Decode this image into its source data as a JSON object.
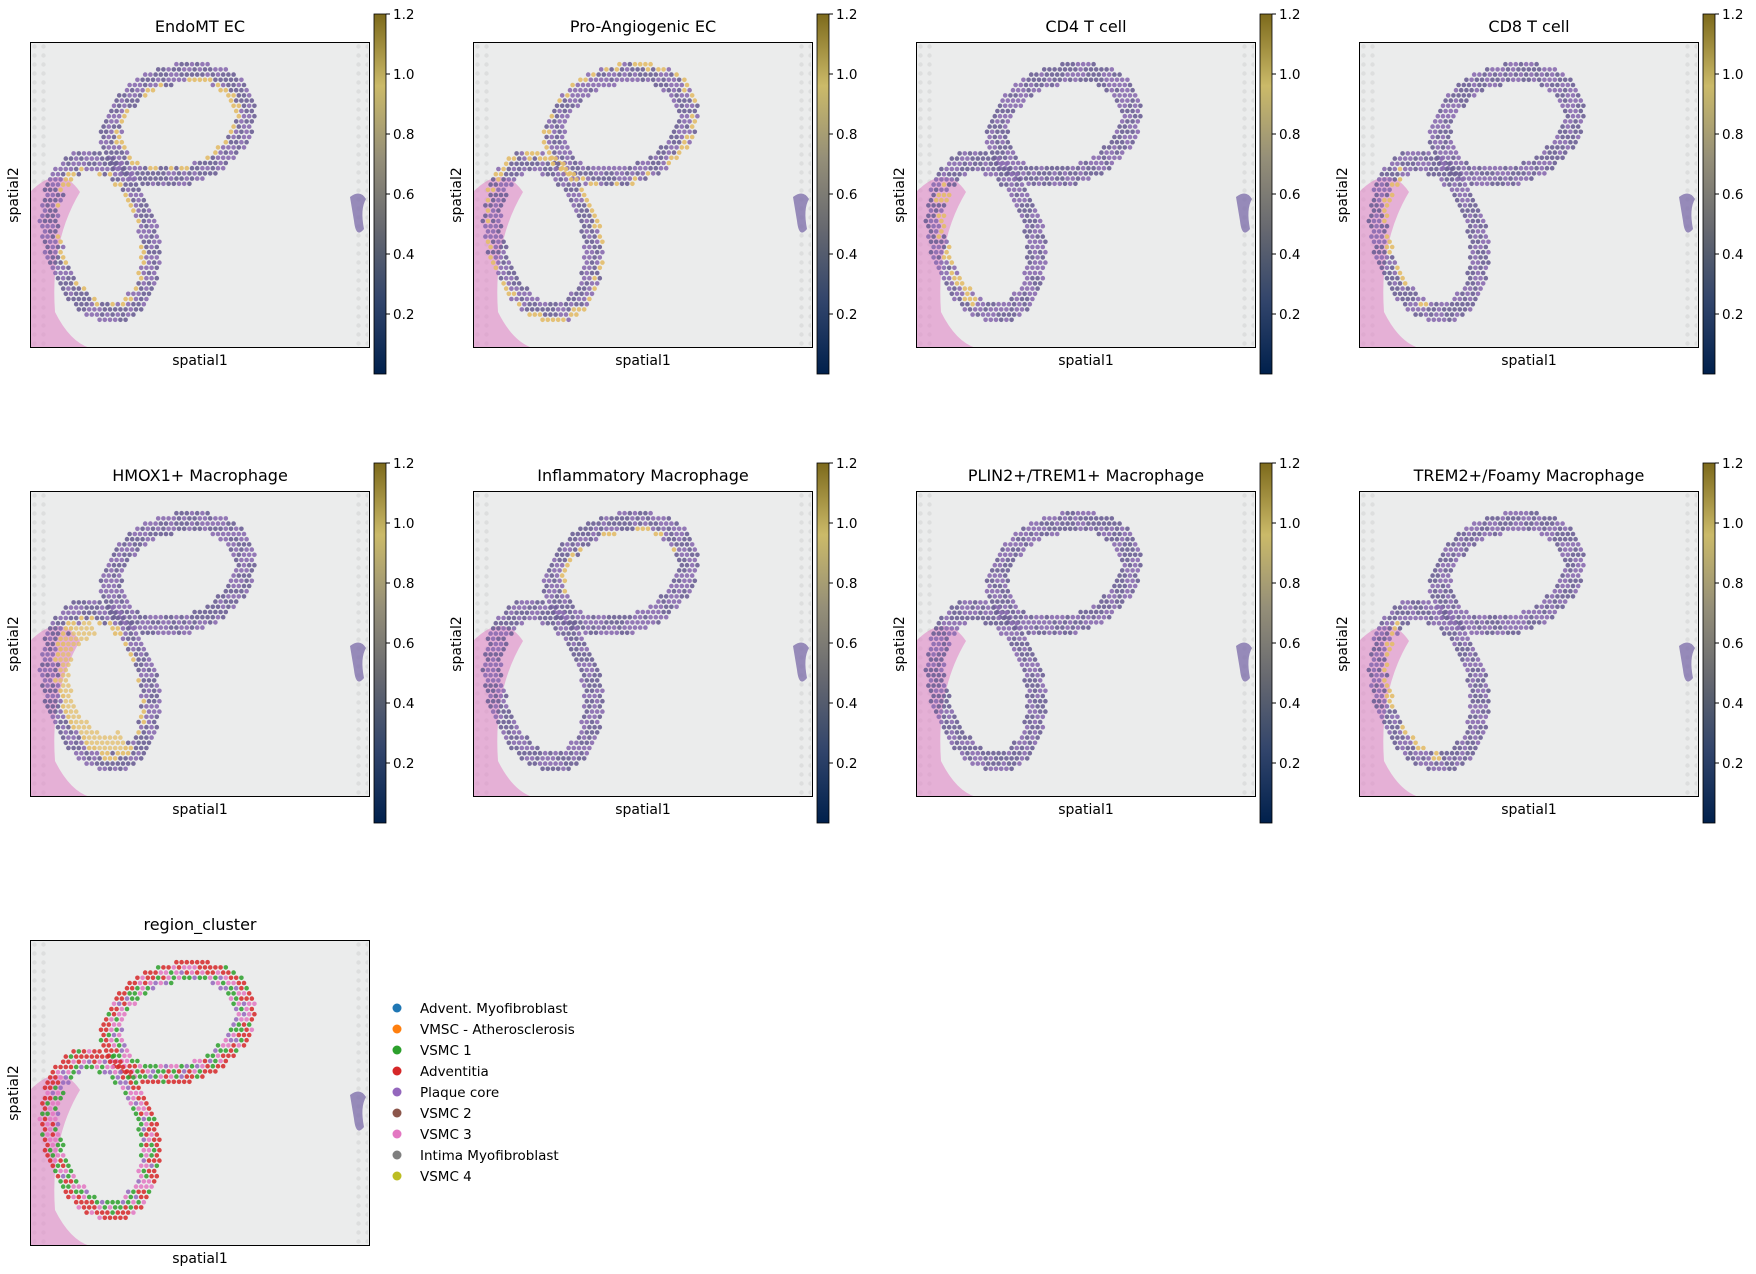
{
  "figure": {
    "xlabel": "spatial1",
    "ylabel": "spatial2"
  },
  "colors": {
    "tissue_bg": "#ebecec",
    "spot_base": "#6b5f95",
    "spot_mid": "#8a6bb0",
    "pink_tissue": "#e07fc4",
    "highlight": "#e3bd6a",
    "colormap": [
      "#00204c",
      "#31446b",
      "#666870",
      "#958f78",
      "#cbba69",
      "#7d6a1c"
    ]
  },
  "chart_data": [
    {
      "type": "spatial-scatter",
      "title": "EndoMT EC",
      "xlabel": "spatial1",
      "ylabel": "spatial2",
      "colorbar": {
        "range": [
          0,
          1.2
        ],
        "ticks": [
          "0.2",
          "0.4",
          "0.6",
          "0.8",
          "1.0",
          "1.2"
        ]
      },
      "hotspot": "inner edge of both vessel lumens"
    },
    {
      "type": "spatial-scatter",
      "title": "Pro-Angiogenic EC",
      "xlabel": "spatial1",
      "ylabel": "spatial2",
      "colorbar": {
        "range": [
          0,
          1.2
        ],
        "ticks": [
          "0.2",
          "0.4",
          "0.6",
          "0.8",
          "1.0",
          "1.2"
        ]
      },
      "hotspot": "outer edge / adventitia"
    },
    {
      "type": "spatial-scatter",
      "title": "CD4 T cell",
      "xlabel": "spatial1",
      "ylabel": "spatial2",
      "colorbar": {
        "range": [
          0,
          1.2
        ],
        "ticks": [
          "0.2",
          "0.4",
          "0.6",
          "0.8",
          "1.0",
          "1.2"
        ]
      },
      "hotspot": "left side of lower vessel"
    },
    {
      "type": "spatial-scatter",
      "title": "CD8 T cell",
      "xlabel": "spatial1",
      "ylabel": "spatial2",
      "colorbar": {
        "range": [
          0,
          1.2
        ],
        "ticks": [
          "0.2",
          "0.4",
          "0.6",
          "0.8",
          "1.0",
          "1.2"
        ]
      },
      "hotspot": "left inner edge of lower vessel"
    },
    {
      "type": "spatial-scatter",
      "title": "HMOX1+ Macrophage",
      "xlabel": "spatial1",
      "ylabel": "spatial2",
      "colorbar": {
        "range": [
          0,
          1.2
        ],
        "ticks": [
          "0.2",
          "0.4",
          "0.6",
          "0.8",
          "1.0",
          "1.2"
        ]
      },
      "hotspot": "plaque core of lower vessel"
    },
    {
      "type": "spatial-scatter",
      "title": "Inflammatory Macrophage",
      "xlabel": "spatial1",
      "ylabel": "spatial2",
      "colorbar": {
        "range": [
          0,
          1.2
        ],
        "ticks": [
          "0.2",
          "0.4",
          "0.6",
          "0.8",
          "1.0",
          "1.2"
        ]
      },
      "hotspot": "upper vessel inner edge"
    },
    {
      "type": "spatial-scatter",
      "title": "PLIN2+/TREM1+ Macrophage",
      "xlabel": "spatial1",
      "ylabel": "spatial2",
      "colorbar": {
        "range": [
          0,
          1.2
        ],
        "ticks": [
          "0.2",
          "0.4",
          "0.6",
          "0.8",
          "1.0",
          "1.2"
        ]
      },
      "hotspot": "none"
    },
    {
      "type": "spatial-scatter",
      "title": "TREM2+/Foamy Macrophage",
      "xlabel": "spatial1",
      "ylabel": "spatial2",
      "colorbar": {
        "range": [
          0,
          1.2
        ],
        "ticks": [
          "0.2",
          "0.4",
          "0.6",
          "0.8",
          "1.0",
          "1.2"
        ]
      },
      "hotspot": "left inner edge of lower vessel"
    },
    {
      "type": "spatial-scatter-categorical",
      "title": "region_cluster",
      "xlabel": "spatial1",
      "ylabel": "spatial2",
      "legend_position": "right",
      "categories": [
        {
          "name": "Advent. Myofibroblast",
          "color": "#1f77b4"
        },
        {
          "name": "VMSC - Atherosclerosis",
          "color": "#ff7f0e"
        },
        {
          "name": "VSMC 1",
          "color": "#2ca02c"
        },
        {
          "name": "Adventitia",
          "color": "#d62728"
        },
        {
          "name": "Plaque core",
          "color": "#9467bd"
        },
        {
          "name": "VSMC 2",
          "color": "#8c564b"
        },
        {
          "name": "VSMC 3",
          "color": "#e377c2"
        },
        {
          "name": "Intima Myofibroblast",
          "color": "#7f7f7f"
        },
        {
          "name": "VSMC 4",
          "color": "#bcbd22"
        }
      ]
    }
  ]
}
